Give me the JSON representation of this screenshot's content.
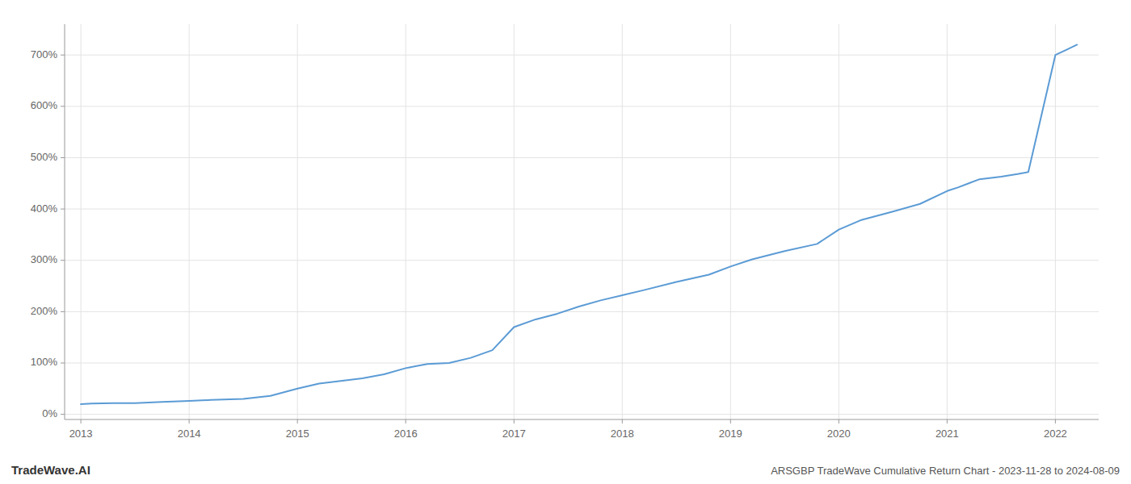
{
  "chart_data": {
    "type": "line",
    "title": "ARSGBP TradeWave Cumulative Return Chart - 2023-11-28 to 2024-08-09",
    "annotations": [
      "TradeWave.AI"
    ],
    "x": [
      2013.0,
      2013.1,
      2013.3,
      2013.5,
      2013.75,
      2014.0,
      2014.2,
      2014.5,
      2014.75,
      2015.0,
      2015.2,
      2015.4,
      2015.6,
      2015.8,
      2016.0,
      2016.1,
      2016.2,
      2016.4,
      2016.6,
      2016.8,
      2017.0,
      2017.2,
      2017.4,
      2017.6,
      2017.8,
      2018.0,
      2018.2,
      2018.5,
      2018.8,
      2019.0,
      2019.2,
      2019.5,
      2019.8,
      2020.0,
      2020.2,
      2020.5,
      2020.75,
      2021.0,
      2021.1,
      2021.2,
      2021.3,
      2021.5,
      2021.65,
      2021.75,
      2022.0,
      2022.1,
      2022.2
    ],
    "values": [
      20,
      21,
      22,
      22,
      24,
      26,
      28,
      30,
      36,
      50,
      60,
      65,
      70,
      78,
      90,
      94,
      98,
      100,
      110,
      125,
      170,
      185,
      196,
      210,
      222,
      232,
      242,
      258,
      272,
      288,
      302,
      318,
      332,
      360,
      378,
      395,
      410,
      435,
      442,
      450,
      458,
      463,
      468,
      472,
      700,
      710,
      720
    ],
    "color": "#5b9bd5",
    "xlim": [
      2012.85,
      2022.4
    ],
    "xticks": [
      2013,
      2014,
      2015,
      2016,
      2017,
      2018,
      2019,
      2020,
      2021,
      2022
    ],
    "ylim": [
      -10,
      760
    ],
    "yticks": [
      {
        "value": 0,
        "label": "0%"
      },
      {
        "value": 100,
        "label": "100%"
      },
      {
        "value": 200,
        "label": "200%"
      },
      {
        "value": 300,
        "label": "300%"
      },
      {
        "value": 400,
        "label": "400%"
      },
      {
        "value": 500,
        "label": "500%"
      },
      {
        "value": 600,
        "label": "600%"
      },
      {
        "value": 700,
        "label": "700%"
      }
    ],
    "grid": true
  }
}
